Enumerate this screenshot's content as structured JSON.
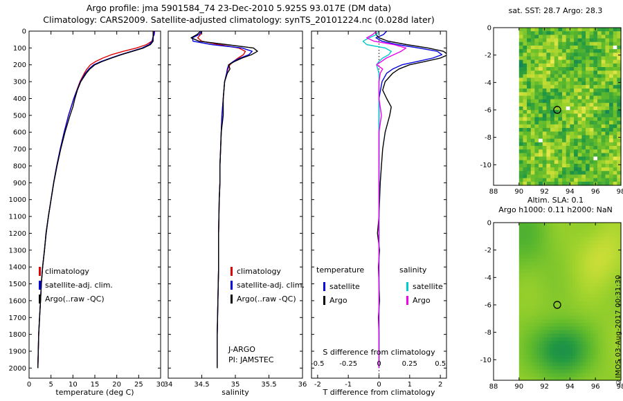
{
  "header": {
    "line1": "Argo profile: jma 5901584_74 23-Dec-2010 5.925S 93.017E (DM data)",
    "line2": "Climatology: CARS2009. Satellite-adjusted climatology: synTS_20101224.nc (0.028d later)"
  },
  "annotations": {
    "project": "J-ARGO",
    "pi": "PI: JAMSTEC",
    "copyright": "©IMOS 03-Aug-2017 00:31:30"
  },
  "colors": {
    "climatology": "#dd0000",
    "satellite_adj": "#0000dd",
    "argo": "#000000",
    "sal_satellite": "#00cccc",
    "sal_argo": "#ee00ee",
    "axis": "#000000"
  },
  "chart_data": [
    {
      "id": "temperature_profile",
      "type": "line",
      "xlabel": "temperature (deg C)",
      "xlim": [
        0,
        30
      ],
      "xticks": [
        0,
        5,
        10,
        15,
        20,
        25,
        30
      ],
      "ylim": [
        0,
        2060
      ],
      "yticks": [
        0,
        100,
        200,
        300,
        400,
        500,
        600,
        700,
        800,
        900,
        1000,
        1100,
        1200,
        1300,
        1400,
        1500,
        1600,
        1700,
        1800,
        1900,
        2000
      ],
      "depth": [
        0,
        20,
        40,
        60,
        80,
        100,
        120,
        140,
        160,
        180,
        200,
        225,
        250,
        300,
        350,
        400,
        450,
        500,
        600,
        700,
        800,
        900,
        1000,
        1100,
        1200,
        1300,
        1400,
        1500,
        1600,
        1700,
        1800,
        1900,
        2000
      ],
      "series": [
        {
          "name": "climatology",
          "color": "#dd0000",
          "values": [
            28.4,
            28.4,
            28.3,
            28.0,
            26.8,
            24.5,
            21.5,
            18.8,
            16.8,
            15.2,
            14.0,
            13.2,
            12.6,
            11.6,
            10.9,
            10.2,
            9.6,
            9.0,
            8.0,
            7.1,
            6.3,
            5.6,
            5.0,
            4.4,
            3.9,
            3.5,
            3.1,
            2.8,
            2.6,
            2.4,
            2.2,
            2.1,
            2.0
          ]
        },
        {
          "name": "satellite-adj. clim.",
          "color": "#0000dd",
          "values": [
            28.65,
            28.55,
            28.2,
            28.1,
            27.4,
            25.8,
            23.4,
            20.85,
            18.55,
            16.45,
            14.75,
            13.65,
            12.85,
            11.7,
            10.95,
            10.2,
            9.6,
            9.0,
            8.0,
            7.1,
            6.3,
            5.6,
            5.0,
            4.4,
            3.9,
            3.5,
            3.1,
            2.8,
            2.6,
            2.4,
            2.2,
            2.1,
            2.0
          ]
        },
        {
          "name": "Argo(..raw -QC)",
          "color": "#000000",
          "values": [
            28.3,
            28.3,
            28.3,
            28.3,
            27.7,
            26.1,
            23.6,
            21.05,
            18.8,
            16.7,
            15.0,
            13.85,
            13.05,
            11.8,
            11.02,
            10.45,
            10.0,
            9.35,
            8.2,
            7.22,
            6.38,
            5.64,
            5.02,
            4.4,
            3.85,
            3.52,
            3.08,
            2.8,
            2.62,
            2.38,
            2.2,
            2.1,
            2.0
          ]
        }
      ]
    },
    {
      "id": "salinity_profile",
      "type": "line",
      "xlabel": "salinity",
      "xlim": [
        34,
        36
      ],
      "xticks": [
        34,
        34.5,
        35,
        35.5,
        36
      ],
      "ylim": [
        0,
        2060
      ],
      "yticks": [
        0,
        100,
        200,
        300,
        400,
        500,
        600,
        700,
        800,
        900,
        1000,
        1100,
        1200,
        1300,
        1400,
        1500,
        1600,
        1700,
        1800,
        1900,
        2000
      ],
      "depth": [
        0,
        20,
        40,
        60,
        80,
        100,
        120,
        140,
        160,
        180,
        200,
        225,
        250,
        300,
        350,
        400,
        500,
        600,
        700,
        800,
        900,
        1000,
        1200,
        1400,
        1600,
        1800,
        2000
      ],
      "series": [
        {
          "name": "climatology",
          "color": "#dd0000",
          "values": [
            34.5,
            34.48,
            34.44,
            34.5,
            34.75,
            35.05,
            35.15,
            35.12,
            35.04,
            34.97,
            34.92,
            34.89,
            34.87,
            34.84,
            34.83,
            34.82,
            34.8,
            34.79,
            34.78,
            34.77,
            34.77,
            34.76,
            34.75,
            34.75,
            34.74,
            34.73,
            34.73
          ]
        },
        {
          "name": "satellite-adj. clim.",
          "color": "#0000dd",
          "values": [
            34.5,
            34.46,
            34.36,
            34.37,
            34.65,
            35.1,
            35.25,
            35.2,
            35.07,
            34.97,
            34.9,
            34.88,
            34.87,
            34.84,
            34.83,
            34.82,
            34.8,
            34.79,
            34.78,
            34.77,
            34.77,
            34.76,
            34.75,
            34.75,
            34.74,
            34.73,
            34.73
          ]
        },
        {
          "name": "Argo(..raw -QC)",
          "color": "#000000",
          "values": [
            34.48,
            34.43,
            34.34,
            34.46,
            34.87,
            35.27,
            35.33,
            35.24,
            35.1,
            34.99,
            34.9,
            34.92,
            34.88,
            34.84,
            34.83,
            34.82,
            34.82,
            34.79,
            34.78,
            34.77,
            34.77,
            34.76,
            34.75,
            34.75,
            34.74,
            34.73,
            34.73
          ]
        }
      ]
    },
    {
      "id": "difference_profile",
      "type": "line",
      "xlabel": "T difference from climatology",
      "xlabel2": "S difference from climatology",
      "xlim": [
        -2.2,
        2.2
      ],
      "xticks": [
        -2,
        -1,
        0,
        1,
        2
      ],
      "x2lim": [
        -0.55,
        0.55
      ],
      "x2ticks": [
        -0.5,
        -0.25,
        0,
        0.25,
        0.5
      ],
      "ylim": [
        0,
        2060
      ],
      "yticks": [
        0,
        100,
        200,
        300,
        400,
        500,
        600,
        700,
        800,
        900,
        1000,
        1100,
        1200,
        1300,
        1400,
        1500,
        1600,
        1700,
        1800,
        1900,
        2000
      ],
      "legend": {
        "headers": [
          "temperature",
          "salinity"
        ]
      },
      "depth": [
        0,
        20,
        40,
        60,
        80,
        100,
        120,
        140,
        160,
        180,
        200,
        225,
        250,
        300,
        350,
        400,
        450,
        500,
        600,
        700,
        800,
        900,
        1000,
        1100,
        1200,
        1300,
        1400,
        1500,
        1600,
        1700,
        1800,
        1900,
        2000
      ],
      "series_T": [
        {
          "name": "satellite",
          "color": "#0000dd",
          "values": [
            0.25,
            0.15,
            -0.1,
            0.1,
            0.6,
            1.3,
            1.9,
            2.05,
            1.75,
            1.25,
            0.75,
            0.45,
            0.25,
            0.1,
            0.05,
            0,
            0,
            0,
            0,
            0,
            0,
            0,
            0,
            0,
            0,
            0,
            0,
            0,
            0,
            0,
            0,
            0,
            0
          ]
        },
        {
          "name": "Argo",
          "color": "#000000",
          "values": [
            -0.1,
            -0.1,
            0,
            0.3,
            0.9,
            1.6,
            2.1,
            2.25,
            2.0,
            1.5,
            1.0,
            0.65,
            0.45,
            0.2,
            0.12,
            0.25,
            0.4,
            0.35,
            0.2,
            0.12,
            0.08,
            0.04,
            0.02,
            0,
            -0.05,
            0.02,
            -0.02,
            0,
            0.02,
            -0.02,
            0,
            0,
            0
          ]
        }
      ],
      "depth_S": [
        0,
        20,
        40,
        60,
        80,
        100,
        120,
        140,
        160,
        180,
        200,
        225,
        250,
        300,
        350,
        400,
        500,
        600,
        700,
        800,
        900,
        1000,
        1200,
        1400,
        1600,
        1800,
        2000
      ],
      "series_S": [
        {
          "name": "satellite",
          "color": "#00cccc",
          "values": [
            0,
            -0.02,
            -0.08,
            -0.13,
            -0.1,
            0.05,
            0.1,
            0.08,
            0.03,
            0,
            -0.02,
            -0.01,
            0,
            0,
            0,
            0,
            0,
            0,
            0,
            0,
            0,
            0,
            0,
            0,
            0,
            0,
            0
          ]
        },
        {
          "name": "Argo",
          "color": "#ee00ee",
          "values": [
            -0.02,
            -0.05,
            -0.1,
            -0.04,
            0.12,
            0.22,
            0.18,
            0.12,
            0.06,
            0.02,
            -0.02,
            0.03,
            0.01,
            0,
            0,
            0,
            0.02,
            0,
            0,
            0,
            0,
            0,
            0,
            0,
            0,
            0,
            0
          ]
        }
      ]
    },
    {
      "id": "sst_map",
      "type": "heatmap",
      "title": "sat. SST: 28.7 Argo: 28.3",
      "xlim": [
        88,
        98
      ],
      "ylim": [
        0,
        -11.5
      ],
      "xticks": [
        88,
        90,
        92,
        94,
        96,
        98
      ],
      "yticks": [
        0,
        -2,
        -4,
        -6,
        -8,
        -10
      ],
      "data_extent": {
        "x": [
          90,
          98
        ],
        "y": [
          0,
          -11.5
        ]
      },
      "marker": {
        "x": 93,
        "y": -6
      },
      "style": "noisy"
    },
    {
      "id": "sla_map",
      "type": "heatmap",
      "title": "Altim. SLA: 0.1",
      "subtitle": "Argo h1000: 0.11 h2000: NaN",
      "xlim": [
        88,
        98
      ],
      "ylim": [
        0,
        -11.5
      ],
      "xticks": [
        88,
        90,
        92,
        94,
        96,
        98
      ],
      "yticks": [
        0,
        -2,
        -4,
        -6,
        -8,
        -10
      ],
      "data_extent": {
        "x": [
          90,
          98
        ],
        "y": [
          0,
          -11.5
        ]
      },
      "marker": {
        "x": 93,
        "y": -6
      },
      "style": "smooth"
    }
  ]
}
